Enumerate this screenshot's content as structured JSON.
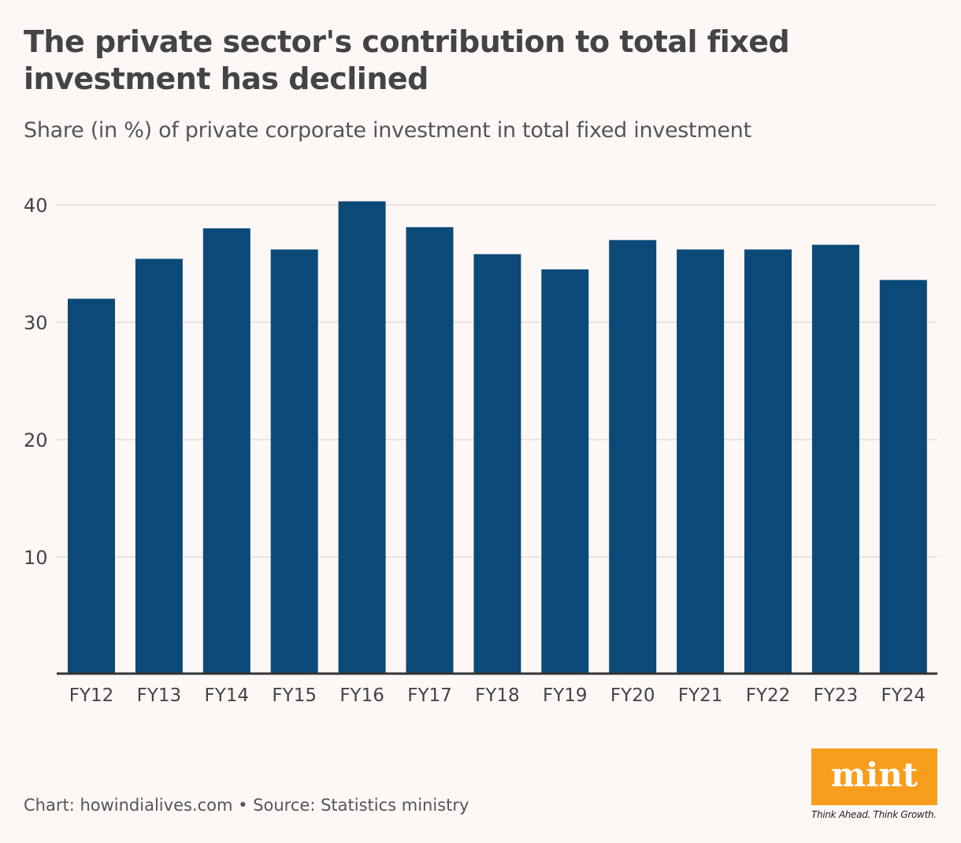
{
  "header": {
    "title": "The private sector's contribution to total fixed investment has declined",
    "subtitle": "Share (in %) of private corporate investment in total fixed investment"
  },
  "footer": {
    "credit": "Chart: howindialives.com • Source: Statistics ministry"
  },
  "logo": {
    "name": "mint",
    "tagline": "Think Ahead. Think Growth.",
    "color": "#f99d1c"
  },
  "chart_data": {
    "type": "bar",
    "title": "The private sector's contribution to total fixed investment has declined",
    "subtitle": "Share (in %) of private corporate investment in total fixed investment",
    "categories": [
      "FY12",
      "FY13",
      "FY14",
      "FY15",
      "FY16",
      "FY17",
      "FY18",
      "FY19",
      "FY20",
      "FY21",
      "FY22",
      "FY23",
      "FY24"
    ],
    "values": [
      32.0,
      35.4,
      38.0,
      36.2,
      40.3,
      38.1,
      35.8,
      34.5,
      37.0,
      36.2,
      36.2,
      36.6,
      33.6
    ],
    "ylim": [
      0,
      40
    ],
    "yticks": [
      10,
      20,
      30,
      40
    ],
    "grid": true,
    "bar_color": "#0b4a78",
    "xlabel": "",
    "ylabel": ""
  }
}
